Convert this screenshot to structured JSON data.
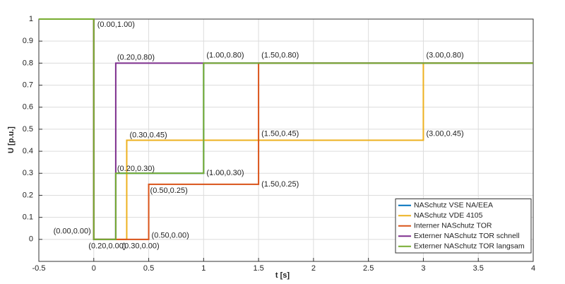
{
  "chart_data": {
    "type": "line",
    "xlabel": "t [s]",
    "ylabel": "U [p.u.]",
    "xlim": [
      -0.5,
      4
    ],
    "xticks": [
      -0.5,
      0,
      0.5,
      1,
      1.5,
      2,
      2.5,
      3,
      3.5,
      4
    ],
    "ylim": [
      -0.1,
      1
    ],
    "yticks": [
      0,
      0.1,
      0.2,
      0.3,
      0.4,
      0.5,
      0.6,
      0.7,
      0.8,
      0.9,
      1
    ],
    "grid": true,
    "legend": "lower right",
    "series": [
      {
        "name": "NASchutz VSE NA/EEA",
        "color": "#0072bd",
        "x": [
          -0.5,
          0,
          0,
          0.2,
          0.2,
          1,
          1,
          4
        ],
        "values": [
          1,
          1,
          0,
          0,
          0.3,
          0.3,
          0.8,
          0.8
        ]
      },
      {
        "name": "NASchutz VDE 4105",
        "color": "#edb120",
        "x": [
          -0.5,
          0,
          0,
          0.3,
          0.3,
          3,
          3,
          4
        ],
        "values": [
          1,
          1,
          0,
          0,
          0.45,
          0.45,
          0.8,
          0.8
        ]
      },
      {
        "name": "Interner NASchutz TOR",
        "color": "#d95319",
        "x": [
          -0.5,
          0,
          0,
          0.5,
          0.5,
          1.5,
          1.5,
          4
        ],
        "values": [
          1,
          1,
          0,
          0,
          0.25,
          0.25,
          0.8,
          0.8
        ]
      },
      {
        "name": "Externer NASchutz TOR schnell",
        "color": "#7e2f8e",
        "x": [
          -0.5,
          0,
          0,
          0.2,
          0.2,
          4
        ],
        "values": [
          1,
          1,
          0,
          0,
          0.8,
          0.8
        ]
      },
      {
        "name": "Externer NASchutz TOR langsam",
        "color": "#77ac30",
        "x": [
          -0.5,
          0,
          0,
          0.2,
          0.2,
          1,
          1,
          4
        ],
        "values": [
          1,
          1,
          0,
          0,
          0.3,
          0.3,
          0.8,
          0.8
        ]
      }
    ],
    "annotations": [
      {
        "text": "(0.00,1.00)",
        "x": 0,
        "y": 1
      },
      {
        "text": "(0.20,0.80)",
        "x": 0.2,
        "y": 0.8
      },
      {
        "text": "(1.00,0.80)",
        "x": 1,
        "y": 0.8
      },
      {
        "text": "(1.50,0.80)",
        "x": 1.5,
        "y": 0.8
      },
      {
        "text": "(3.00,0.80)",
        "x": 3,
        "y": 0.8
      },
      {
        "text": "(0.30,0.45)",
        "x": 0.3,
        "y": 0.45
      },
      {
        "text": "(1.50,0.45)",
        "x": 1.5,
        "y": 0.45
      },
      {
        "text": "(3.00,0.45)",
        "x": 3,
        "y": 0.45
      },
      {
        "text": "(0.20,0.30)",
        "x": 0.2,
        "y": 0.3
      },
      {
        "text": "(1.00,0.30)",
        "x": 1,
        "y": 0.3
      },
      {
        "text": "(0.50,0.25)",
        "x": 0.5,
        "y": 0.25
      },
      {
        "text": "(1.50,0.25)",
        "x": 1.5,
        "y": 0.25
      },
      {
        "text": "(0.00,0.00)",
        "x": 0,
        "y": 0
      },
      {
        "text": "(0.20,0.00)",
        "x": 0.2,
        "y": 0
      },
      {
        "text": "(0.30,0.00)",
        "x": 0.3,
        "y": 0
      },
      {
        "text": "(0.50,0.00)",
        "x": 0.5,
        "y": 0
      }
    ]
  }
}
